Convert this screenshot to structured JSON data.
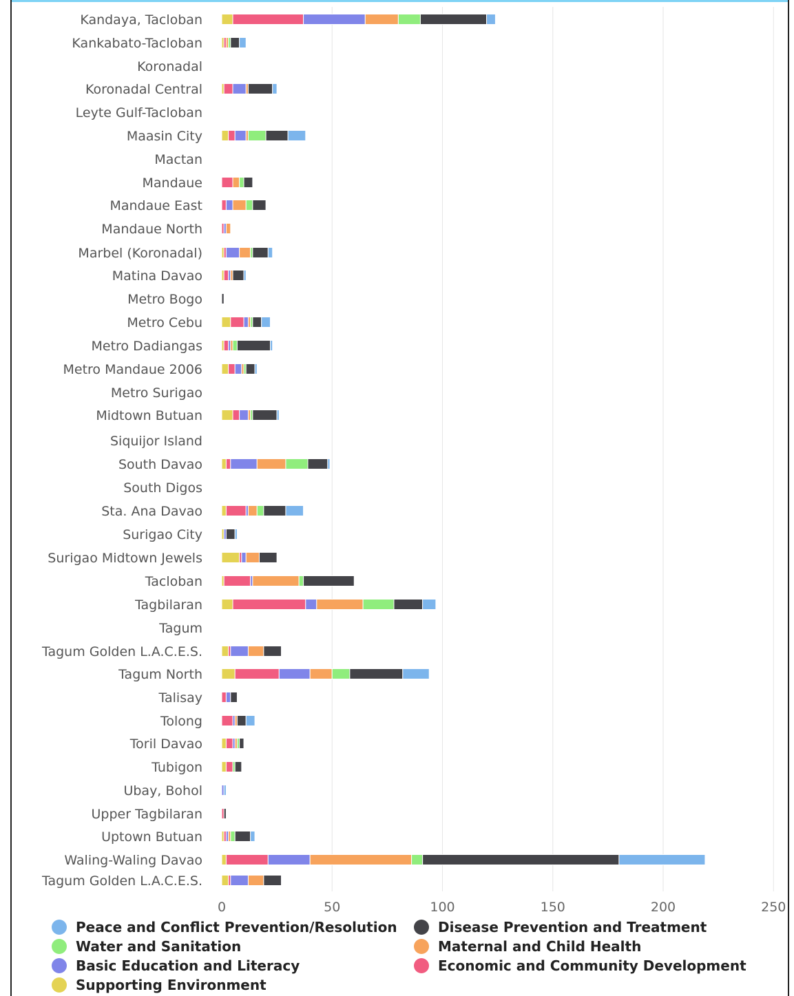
{
  "chart_data": {
    "type": "bar",
    "orientation": "horizontal",
    "stacked": true,
    "xlim": [
      0,
      250
    ],
    "x_ticks": [
      0,
      50,
      100,
      150,
      200,
      250
    ],
    "grid": true,
    "legend_position": "bottom",
    "categories": [
      "Kandaya, Tacloban",
      "Kankabato-Tacloban",
      "Koronadal",
      "Koronadal Central",
      "Leyte Gulf-Tacloban",
      "Maasin City",
      "Mactan",
      "Mandaue",
      "Mandaue East",
      "Mandaue North",
      "Marbel (Koronadal)",
      "Matina Davao",
      "Metro Bogo",
      "Metro Cebu",
      "Metro Dadiangas",
      "Metro Mandaue 2006",
      "Metro Surigao",
      "Midtown Butuan",
      "Siquijor Island",
      "South Davao",
      "South Digos",
      "Sta. Ana Davao",
      "Surigao City",
      "Surigao Midtown Jewels",
      "Tacloban",
      "Tagbilaran",
      "Tagum",
      "Tagum Golden L.A.C.E.S.",
      "Tagum North",
      "Talisay",
      "Tolong",
      "Toril Davao",
      "Tubigon",
      "Ubay, Bohol",
      "Upper Tagbilaran",
      "Uptown Butuan",
      "Waling-Waling Davao",
      "Tagum Golden L.A.C.E.S."
    ],
    "series": [
      {
        "name": "Supporting Environment",
        "color": "#e4d354",
        "values": [
          5,
          1,
          0,
          1,
          0,
          3,
          0,
          0,
          0,
          0,
          1,
          1,
          0,
          4,
          1,
          3,
          0,
          5,
          0,
          2,
          0,
          2,
          1,
          8,
          1,
          5,
          0,
          3,
          6,
          0,
          0,
          2,
          2,
          0,
          0,
          1,
          2,
          3
        ]
      },
      {
        "name": "Economic and Community Development",
        "color": "#f15c80",
        "values": [
          32,
          1,
          0,
          4,
          0,
          3,
          0,
          5,
          2,
          1,
          1,
          2,
          0,
          6,
          2,
          3,
          0,
          3,
          0,
          2,
          0,
          9,
          0,
          1,
          12,
          33,
          0,
          1,
          20,
          2,
          5,
          3,
          3,
          0,
          1,
          1,
          19,
          1
        ]
      },
      {
        "name": "Basic Education and Literacy",
        "color": "#8085e9",
        "values": [
          28,
          0,
          0,
          6,
          0,
          5,
          0,
          0,
          3,
          1,
          6,
          1,
          0,
          2,
          1,
          3,
          0,
          4,
          0,
          12,
          0,
          1,
          1,
          2,
          1,
          5,
          0,
          8,
          14,
          2,
          1,
          1,
          0,
          1,
          0,
          1,
          19,
          8
        ]
      },
      {
        "name": "Maternal and Child Health",
        "color": "#f7a35c",
        "values": [
          15,
          1,
          0,
          1,
          0,
          1,
          0,
          3,
          6,
          2,
          5,
          1,
          0,
          1,
          1,
          1,
          0,
          1,
          0,
          13,
          0,
          4,
          0,
          6,
          21,
          21,
          0,
          7,
          10,
          0,
          1,
          1,
          0,
          0,
          0,
          1,
          46,
          7
        ]
      },
      {
        "name": "Water and Sanitation",
        "color": "#90ed7d",
        "values": [
          10,
          1,
          0,
          0,
          0,
          8,
          0,
          2,
          3,
          0,
          1,
          0,
          0,
          1,
          2,
          1,
          0,
          1,
          0,
          10,
          0,
          3,
          0,
          0,
          2,
          14,
          0,
          0,
          8,
          0,
          0,
          1,
          1,
          0,
          0,
          2,
          5,
          0
        ]
      },
      {
        "name": "Disease Prevention and Treatment",
        "color": "#434348",
        "values": [
          30,
          4,
          0,
          11,
          0,
          10,
          0,
          4,
          6,
          0,
          7,
          5,
          1,
          4,
          15,
          4,
          0,
          11,
          0,
          9,
          0,
          10,
          4,
          8,
          23,
          13,
          0,
          8,
          24,
          3,
          4,
          2,
          3,
          0,
          1,
          7,
          89,
          8
        ]
      },
      {
        "name": "Peace and Conflict Prevention/Resolution",
        "color": "#7cb5ec",
        "values": [
          4,
          3,
          0,
          2,
          0,
          8,
          0,
          0,
          0,
          0,
          2,
          1,
          0,
          4,
          1,
          1,
          0,
          1,
          0,
          1,
          0,
          8,
          1,
          0,
          0,
          6,
          0,
          0,
          12,
          0,
          4,
          0,
          0,
          1,
          0,
          2,
          39,
          0
        ]
      }
    ],
    "legend": [
      {
        "name": "Peace and Conflict Prevention/Resolution",
        "color": "#7cb5ec"
      },
      {
        "name": "Disease Prevention and Treatment",
        "color": "#434348"
      },
      {
        "name": "Water and Sanitation",
        "color": "#90ed7d"
      },
      {
        "name": "Maternal and Child Health",
        "color": "#f7a35c"
      },
      {
        "name": "Basic Education and Literacy",
        "color": "#8085e9"
      },
      {
        "name": "Economic and Community Development",
        "color": "#f15c80"
      },
      {
        "name": "Supporting Environment",
        "color": "#e4d354"
      }
    ]
  }
}
